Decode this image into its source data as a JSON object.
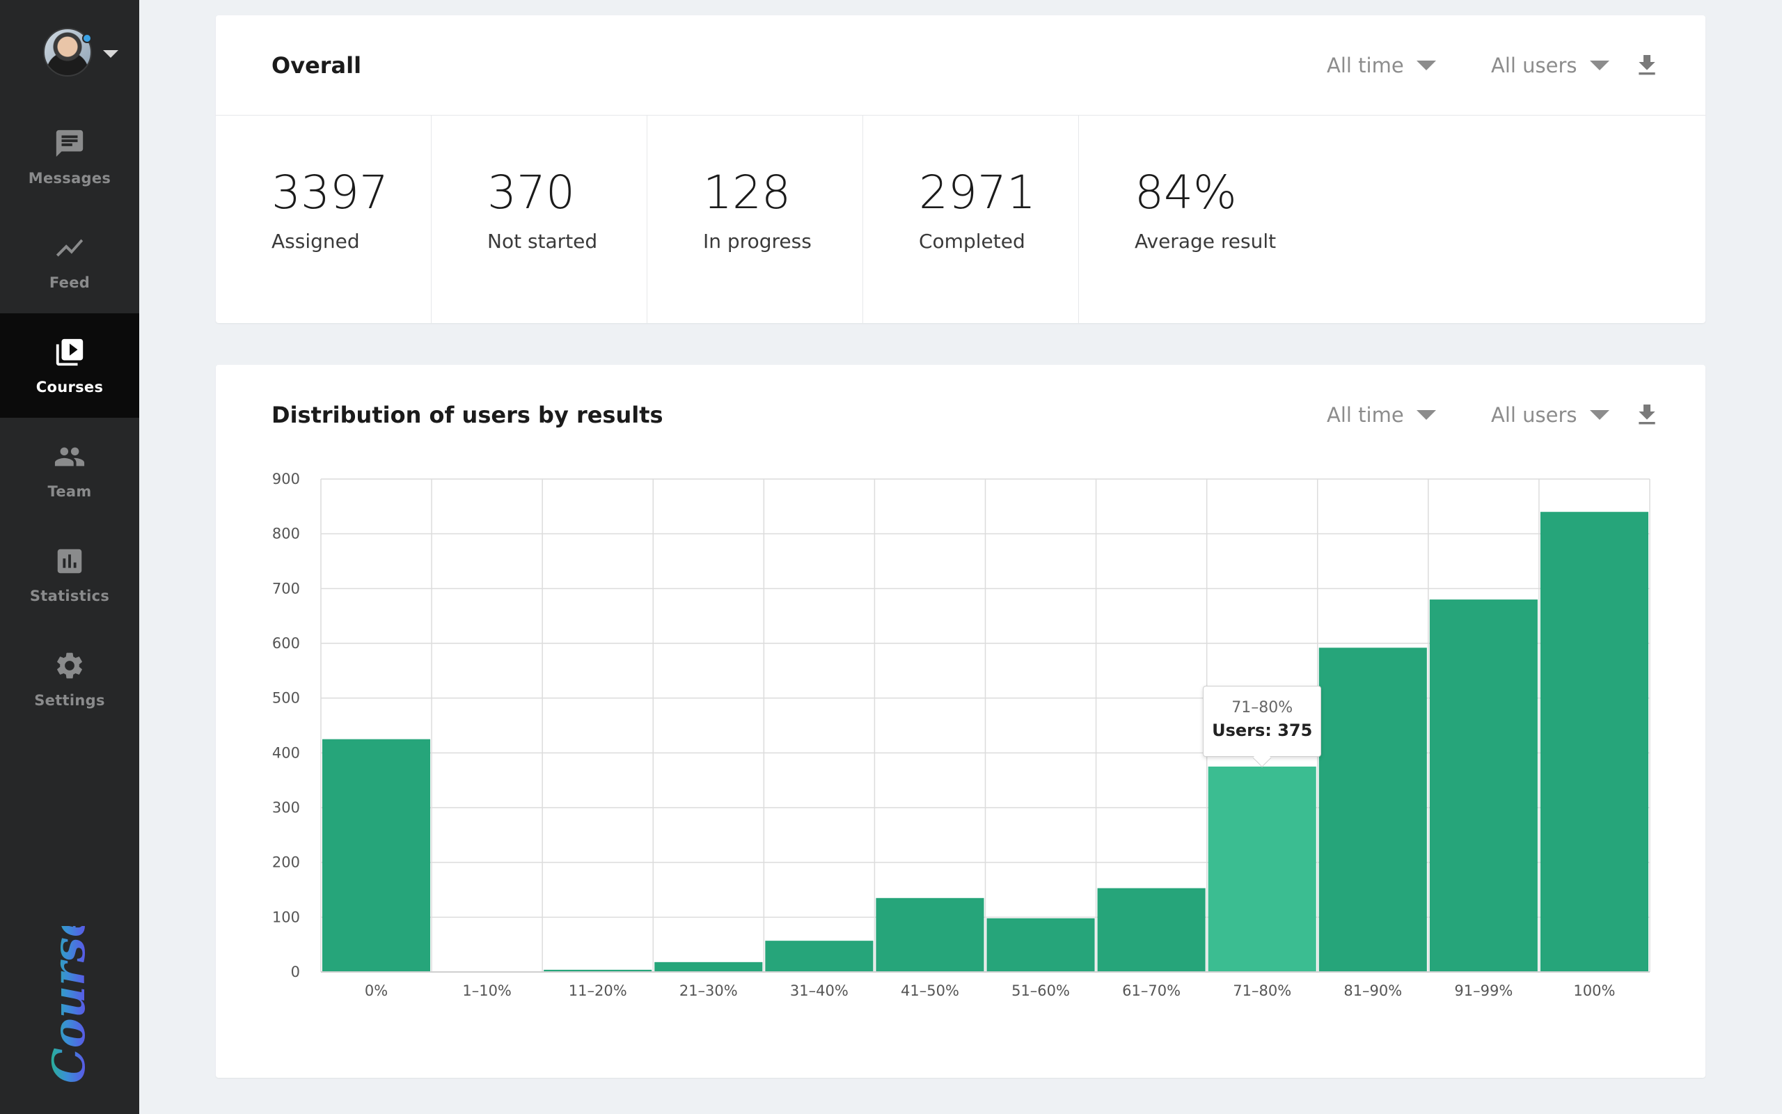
{
  "sidebar": {
    "profile": {
      "avatar": "user-avatar",
      "menu_icon": "chevron-down-icon"
    },
    "items": [
      {
        "label": "Messages",
        "icon": "message-icon",
        "active": false
      },
      {
        "label": "Feed",
        "icon": "trend-icon",
        "active": false
      },
      {
        "label": "Courses",
        "icon": "video-library-icon",
        "active": true
      },
      {
        "label": "Team",
        "icon": "people-icon",
        "active": false
      },
      {
        "label": "Statistics",
        "icon": "bar-chart-icon",
        "active": false
      },
      {
        "label": "Settings",
        "icon": "gear-icon",
        "active": false
      }
    ],
    "logo": "Courselle"
  },
  "overall": {
    "title": "Overall",
    "time_filter": "All time",
    "users_filter": "All users",
    "download_icon": "download-icon",
    "stats": [
      {
        "value": "3397",
        "label": "Assigned"
      },
      {
        "value": "370",
        "label": "Not started"
      },
      {
        "value": "128",
        "label": "In progress"
      },
      {
        "value": "2971",
        "label": "Completed"
      },
      {
        "value": "84%",
        "label": "Average result"
      }
    ]
  },
  "distribution": {
    "title": "Distribution of users by results",
    "time_filter": "All time",
    "users_filter": "All users",
    "download_icon": "download-icon",
    "tooltip": {
      "category": "71–80%",
      "text": "Users: 375"
    }
  },
  "chart_data": {
    "type": "bar",
    "categories": [
      "0%",
      "1–10%",
      "11–20%",
      "21–30%",
      "31–40%",
      "41–50%",
      "51–60%",
      "61–70%",
      "71–80%",
      "81–90%",
      "91–99%",
      "100%"
    ],
    "values": [
      425,
      0,
      4,
      18,
      57,
      135,
      98,
      153,
      375,
      592,
      680,
      840
    ],
    "title": "Distribution of users by results",
    "xlabel": "",
    "ylabel": "",
    "ylim": [
      0,
      900
    ],
    "yticks": [
      0,
      100,
      200,
      300,
      400,
      500,
      600,
      700,
      800,
      900
    ],
    "grid": true,
    "highlighted_category": "71–80%",
    "bar_color": "#26a57a",
    "highlight_color": "#3bbd91"
  }
}
